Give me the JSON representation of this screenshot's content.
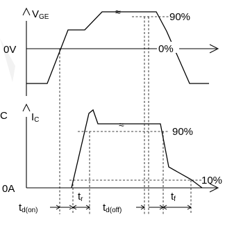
{
  "top_panel": {
    "axis_label_main": "V",
    "axis_label_sub": "GE",
    "zero_label": "0V",
    "level_high_label": "90%",
    "level_zero_label": "0%"
  },
  "bottom_panel": {
    "left_edge_label": "C",
    "axis_label_main": "I",
    "axis_label_sub": "C",
    "zero_label": "0A",
    "level_high_label": "90%",
    "level_low_label": "10%"
  },
  "timing": {
    "td_on": {
      "main": "t",
      "sub": "d(on)"
    },
    "tr": {
      "main": "t",
      "sub": "r"
    },
    "td_off": {
      "main": "t",
      "sub": "d(off)"
    },
    "tf": {
      "main": "t",
      "sub": "f"
    }
  }
}
